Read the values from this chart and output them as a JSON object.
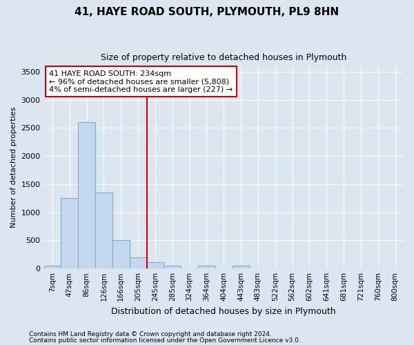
{
  "title": "41, HAYE ROAD SOUTH, PLYMOUTH, PL9 8HN",
  "subtitle": "Size of property relative to detached houses in Plymouth",
  "xlabel": "Distribution of detached houses by size in Plymouth",
  "ylabel": "Number of detached properties",
  "bin_labels": [
    "7sqm",
    "47sqm",
    "86sqm",
    "126sqm",
    "166sqm",
    "205sqm",
    "245sqm",
    "285sqm",
    "324sqm",
    "364sqm",
    "404sqm",
    "443sqm",
    "483sqm",
    "522sqm",
    "562sqm",
    "602sqm",
    "641sqm",
    "681sqm",
    "721sqm",
    "760sqm",
    "800sqm"
  ],
  "bar_values": [
    50,
    1250,
    2600,
    1350,
    500,
    200,
    110,
    50,
    0,
    50,
    0,
    50,
    0,
    0,
    0,
    0,
    0,
    0,
    0,
    0,
    0
  ],
  "bar_color": "#c5d8ee",
  "bar_edge_color": "#7aafd4",
  "ylim": [
    0,
    3600
  ],
  "yticks": [
    0,
    500,
    1000,
    1500,
    2000,
    2500,
    3000,
    3500
  ],
  "vline_x": 6.0,
  "vline_color": "#cc0000",
  "annotation_line1": "41 HAYE ROAD SOUTH: 234sqm",
  "annotation_line2": "← 96% of detached houses are smaller (5,808)",
  "annotation_line3": "4% of semi-detached houses are larger (227) →",
  "annotation_box_color": "#cc0000",
  "footer1": "Contains HM Land Registry data © Crown copyright and database right 2024.",
  "footer2": "Contains public sector information licensed under the Open Government Licence v3.0.",
  "background_color": "#dce6f0",
  "plot_bg_color": "#dce6f0",
  "grid_color": "#ffffff",
  "title_fontsize": 11,
  "subtitle_fontsize": 9,
  "ylabel_fontsize": 8,
  "xlabel_fontsize": 9,
  "tick_fontsize": 7.5,
  "ytick_fontsize": 8,
  "footer_fontsize": 6.5,
  "annot_fontsize": 8
}
